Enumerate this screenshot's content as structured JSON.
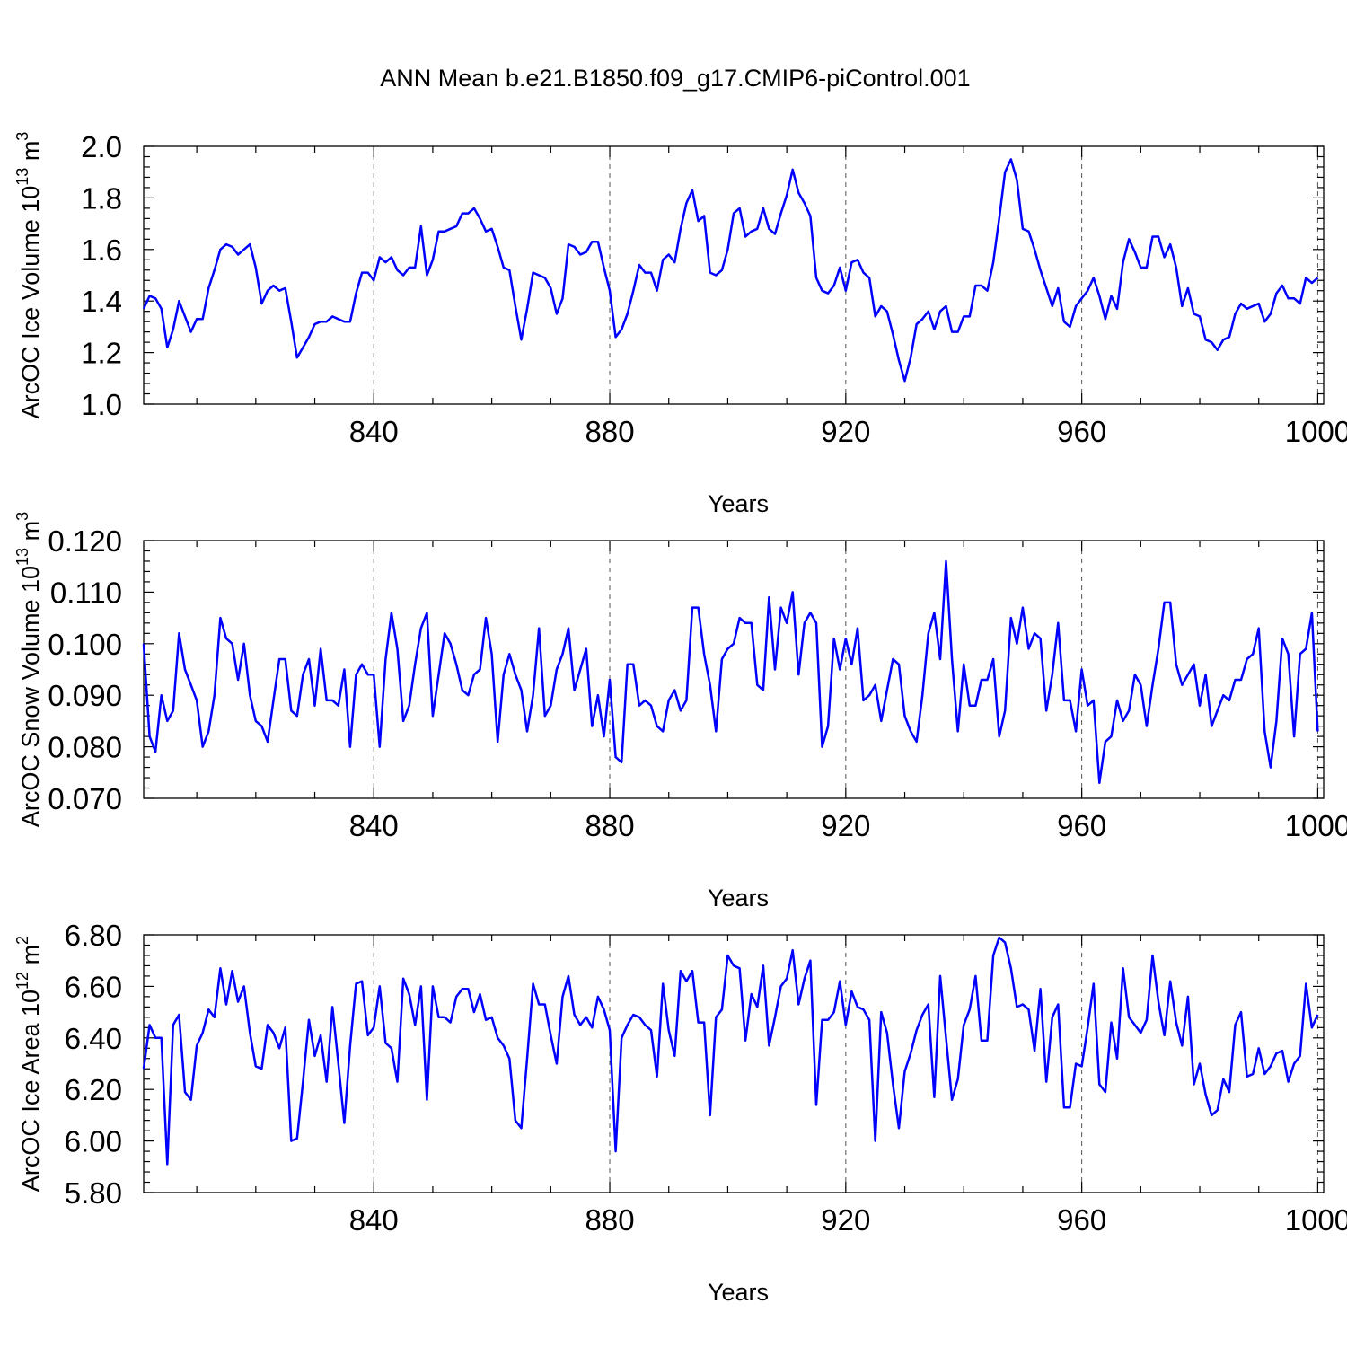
{
  "chart_data": {
    "title": "ANN Mean b.e21.B1850.f09_g17.CMIP6-piControl.001",
    "panels": [
      {
        "type": "line",
        "ylabel": "ArcOC Ice Volume 10",
        "ylabel_exp": "13",
        "ylabel_unit": " m",
        "ylabel_unit_exp": "3",
        "xlabel": "Years",
        "xlim": [
          801,
          1001
        ],
        "ylim": [
          1.0,
          2.0
        ],
        "xticks": [
          840,
          880,
          920,
          960,
          1000
        ],
        "xticklabels": [
          "840",
          "880",
          "920",
          "960",
          "1000"
        ],
        "yticks": [
          1.0,
          1.2,
          1.4,
          1.6,
          1.8,
          2.0
        ],
        "yticklabels": [
          "1.0",
          "1.2",
          "1.4",
          "1.6",
          "1.8",
          "2.0"
        ],
        "color": "#0000ff",
        "x_start": 801,
        "values": [
          1.37,
          1.42,
          1.41,
          1.37,
          1.22,
          1.29,
          1.4,
          1.34,
          1.28,
          1.33,
          1.33,
          1.45,
          1.52,
          1.6,
          1.62,
          1.61,
          1.58,
          1.6,
          1.62,
          1.53,
          1.39,
          1.44,
          1.46,
          1.44,
          1.45,
          1.32,
          1.18,
          1.22,
          1.26,
          1.31,
          1.32,
          1.32,
          1.34,
          1.33,
          1.32,
          1.32,
          1.43,
          1.51,
          1.51,
          1.48,
          1.57,
          1.55,
          1.57,
          1.52,
          1.5,
          1.53,
          1.53,
          1.69,
          1.5,
          1.56,
          1.67,
          1.67,
          1.68,
          1.69,
          1.74,
          1.74,
          1.76,
          1.72,
          1.67,
          1.68,
          1.61,
          1.53,
          1.52,
          1.38,
          1.25,
          1.37,
          1.51,
          1.5,
          1.49,
          1.45,
          1.35,
          1.41,
          1.62,
          1.61,
          1.58,
          1.59,
          1.63,
          1.63,
          1.53,
          1.44,
          1.26,
          1.29,
          1.35,
          1.44,
          1.54,
          1.51,
          1.51,
          1.44,
          1.56,
          1.58,
          1.55,
          1.68,
          1.78,
          1.83,
          1.71,
          1.73,
          1.51,
          1.5,
          1.52,
          1.6,
          1.74,
          1.76,
          1.65,
          1.67,
          1.68,
          1.76,
          1.68,
          1.66,
          1.74,
          1.81,
          1.91,
          1.82,
          1.78,
          1.73,
          1.49,
          1.44,
          1.43,
          1.46,
          1.53,
          1.44,
          1.55,
          1.56,
          1.51,
          1.49,
          1.34,
          1.38,
          1.36,
          1.27,
          1.17,
          1.09,
          1.18,
          1.31,
          1.33,
          1.36,
          1.29,
          1.36,
          1.38,
          1.28,
          1.28,
          1.34,
          1.34,
          1.46,
          1.46,
          1.44,
          1.55,
          1.72,
          1.9,
          1.95,
          1.87,
          1.68,
          1.67,
          1.6,
          1.52,
          1.45,
          1.38,
          1.45,
          1.32,
          1.3,
          1.38,
          1.41,
          1.44,
          1.49,
          1.42,
          1.33,
          1.42,
          1.37,
          1.55,
          1.64,
          1.59,
          1.53,
          1.53,
          1.65,
          1.65,
          1.57,
          1.62,
          1.53,
          1.38,
          1.45,
          1.35,
          1.34,
          1.25,
          1.24,
          1.21,
          1.25,
          1.26,
          1.35,
          1.39,
          1.37,
          1.38,
          1.39,
          1.32,
          1.35,
          1.43,
          1.46,
          1.41,
          1.41,
          1.39,
          1.49,
          1.47,
          1.49
        ]
      },
      {
        "type": "line",
        "ylabel": "ArcOC Snow Volume 10",
        "ylabel_exp": "13",
        "ylabel_unit": " m",
        "ylabel_unit_exp": "3",
        "xlabel": "Years",
        "xlim": [
          801,
          1001
        ],
        "ylim": [
          0.07,
          0.12
        ],
        "xticks": [
          840,
          880,
          920,
          960,
          1000
        ],
        "xticklabels": [
          "840",
          "880",
          "920",
          "960",
          "1000"
        ],
        "yticks": [
          0.07,
          0.08,
          0.09,
          0.1,
          0.11,
          0.12
        ],
        "yticklabels": [
          "0.070",
          "0.080",
          "0.090",
          "0.100",
          "0.110",
          "0.120"
        ],
        "color": "#0000ff",
        "x_start": 801,
        "values": [
          0.1,
          0.082,
          0.079,
          0.09,
          0.085,
          0.087,
          0.102,
          0.095,
          0.092,
          0.089,
          0.08,
          0.083,
          0.09,
          0.105,
          0.101,
          0.1,
          0.093,
          0.1,
          0.09,
          0.085,
          0.084,
          0.081,
          0.089,
          0.097,
          0.097,
          0.087,
          0.086,
          0.094,
          0.097,
          0.088,
          0.099,
          0.089,
          0.089,
          0.088,
          0.095,
          0.08,
          0.094,
          0.096,
          0.094,
          0.094,
          0.08,
          0.097,
          0.106,
          0.099,
          0.085,
          0.088,
          0.096,
          0.103,
          0.106,
          0.086,
          0.094,
          0.102,
          0.1,
          0.096,
          0.091,
          0.09,
          0.094,
          0.095,
          0.105,
          0.098,
          0.081,
          0.094,
          0.098,
          0.094,
          0.091,
          0.083,
          0.09,
          0.103,
          0.086,
          0.088,
          0.095,
          0.098,
          0.103,
          0.091,
          0.095,
          0.099,
          0.084,
          0.09,
          0.082,
          0.093,
          0.078,
          0.077,
          0.096,
          0.096,
          0.088,
          0.089,
          0.088,
          0.084,
          0.083,
          0.089,
          0.091,
          0.087,
          0.089,
          0.107,
          0.107,
          0.098,
          0.092,
          0.083,
          0.097,
          0.099,
          0.1,
          0.105,
          0.104,
          0.104,
          0.092,
          0.091,
          0.109,
          0.095,
          0.107,
          0.104,
          0.11,
          0.094,
          0.104,
          0.106,
          0.104,
          0.08,
          0.084,
          0.101,
          0.095,
          0.101,
          0.096,
          0.103,
          0.089,
          0.09,
          0.092,
          0.085,
          0.091,
          0.097,
          0.096,
          0.086,
          0.083,
          0.081,
          0.09,
          0.102,
          0.106,
          0.097,
          0.116,
          0.097,
          0.083,
          0.096,
          0.088,
          0.088,
          0.093,
          0.093,
          0.097,
          0.082,
          0.087,
          0.105,
          0.1,
          0.107,
          0.099,
          0.102,
          0.101,
          0.087,
          0.094,
          0.104,
          0.089,
          0.089,
          0.083,
          0.095,
          0.088,
          0.089,
          0.073,
          0.081,
          0.082,
          0.089,
          0.085,
          0.087,
          0.094,
          0.092,
          0.084,
          0.092,
          0.099,
          0.108,
          0.108,
          0.096,
          0.092,
          0.094,
          0.096,
          0.088,
          0.094,
          0.084,
          0.087,
          0.09,
          0.089,
          0.093,
          0.093,
          0.097,
          0.098,
          0.103,
          0.083,
          0.076,
          0.085,
          0.101,
          0.098,
          0.082,
          0.098,
          0.099,
          0.106,
          0.083
        ]
      },
      {
        "type": "line",
        "ylabel": "ArcOC Ice Area 10",
        "ylabel_exp": "12",
        "ylabel_unit": " m",
        "ylabel_unit_exp": "2",
        "xlabel": "Years",
        "xlim": [
          801,
          1001
        ],
        "ylim": [
          5.8,
          6.8
        ],
        "xticks": [
          840,
          880,
          920,
          960,
          1000
        ],
        "xticklabels": [
          "840",
          "880",
          "920",
          "960",
          "1000"
        ],
        "yticks": [
          5.8,
          6.0,
          6.2,
          6.4,
          6.6,
          6.8
        ],
        "yticklabels": [
          "5.80",
          "6.00",
          "6.20",
          "6.40",
          "6.60",
          "6.80"
        ],
        "color": "#0000ff",
        "x_start": 801,
        "values": [
          6.28,
          6.45,
          6.4,
          6.4,
          5.91,
          6.45,
          6.49,
          6.19,
          6.16,
          6.37,
          6.42,
          6.51,
          6.48,
          6.67,
          6.53,
          6.66,
          6.54,
          6.6,
          6.42,
          6.29,
          6.28,
          6.45,
          6.42,
          6.36,
          6.44,
          6.0,
          6.01,
          6.23,
          6.47,
          6.33,
          6.41,
          6.23,
          6.52,
          6.3,
          6.07,
          6.37,
          6.61,
          6.62,
          6.41,
          6.44,
          6.6,
          6.38,
          6.36,
          6.23,
          6.63,
          6.57,
          6.45,
          6.6,
          6.16,
          6.6,
          6.48,
          6.48,
          6.46,
          6.56,
          6.59,
          6.59,
          6.5,
          6.57,
          6.47,
          6.48,
          6.4,
          6.37,
          6.32,
          6.08,
          6.05,
          6.32,
          6.61,
          6.53,
          6.53,
          6.41,
          6.3,
          6.56,
          6.64,
          6.49,
          6.45,
          6.48,
          6.44,
          6.56,
          6.51,
          6.43,
          5.96,
          6.4,
          6.45,
          6.49,
          6.48,
          6.45,
          6.43,
          6.25,
          6.61,
          6.43,
          6.33,
          6.66,
          6.62,
          6.66,
          6.46,
          6.46,
          6.1,
          6.48,
          6.51,
          6.72,
          6.68,
          6.67,
          6.39,
          6.57,
          6.52,
          6.68,
          6.37,
          6.48,
          6.6,
          6.63,
          6.74,
          6.53,
          6.63,
          6.7,
          6.14,
          6.47,
          6.47,
          6.5,
          6.62,
          6.45,
          6.58,
          6.52,
          6.51,
          6.47,
          6.0,
          6.5,
          6.42,
          6.22,
          6.05,
          6.27,
          6.34,
          6.43,
          6.49,
          6.53,
          6.17,
          6.64,
          6.4,
          6.16,
          6.24,
          6.45,
          6.51,
          6.64,
          6.39,
          6.39,
          6.72,
          6.79,
          6.77,
          6.67,
          6.52,
          6.53,
          6.51,
          6.35,
          6.59,
          6.23,
          6.48,
          6.53,
          6.13,
          6.13,
          6.3,
          6.29,
          6.44,
          6.61,
          6.22,
          6.19,
          6.46,
          6.32,
          6.67,
          6.48,
          6.45,
          6.42,
          6.47,
          6.72,
          6.54,
          6.41,
          6.62,
          6.46,
          6.37,
          6.56,
          6.22,
          6.3,
          6.18,
          6.1,
          6.12,
          6.24,
          6.19,
          6.45,
          6.5,
          6.25,
          6.26,
          6.36,
          6.26,
          6.29,
          6.34,
          6.35,
          6.23,
          6.3,
          6.33,
          6.61,
          6.44,
          6.49
        ]
      }
    ]
  }
}
